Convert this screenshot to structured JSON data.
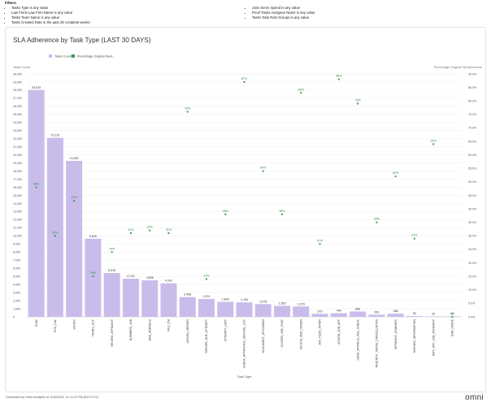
{
  "filters": {
    "title": "Filters",
    "left": [
      "Tasks Type is any value",
      "Law Firms Law Firm Name is any value",
      "Tasks Team Name is any value",
      "Tasks Created Date in the past 25 complete weeks"
    ],
    "right": [
      "Jobs Serve Speed is any value",
      "Proof Tasks Assignee Name is any value",
      "Tasks Task Role Groups is any value"
    ]
  },
  "footer": {
    "generated": "Generated by Omni Analytics at 2/26/2025, 11:13:22 PM (EST/UTC)",
    "logo": "omni"
  },
  "colors": {
    "bar": "#c9bceb",
    "point": "#3f9b52",
    "label_green": "#2f8a43"
  },
  "chart_data": {
    "type": "bar",
    "title": "SLA Adherence by Task Type (LAST 30 DAYS)",
    "xlabel": "Task Type",
    "ylabel": "Tasks Count",
    "ylabel_right": "Percentage Original Sla Adherence",
    "legend": [
      "Tasks Count",
      "Percentage Original Sla A..."
    ],
    "ylim": [
      0,
      30000
    ],
    "ylim_right": [
      0,
      90
    ],
    "yticks": [
      "0",
      "1,000",
      "2,000",
      "3,000",
      "4,000",
      "5,000",
      "6,000",
      "7,000",
      "8,000",
      "9,000",
      "10,000",
      "11,000",
      "12,000",
      "13,000",
      "14,000",
      "15,000",
      "16,000",
      "17,000",
      "18,000",
      "19,000",
      "20,000",
      "21,000",
      "22,000",
      "23,000",
      "24,000",
      "25,000",
      "26,000",
      "27,000",
      "28,000",
      "29,000",
      "30,000"
    ],
    "yticks_right": [
      "0.0%",
      "5.0%",
      "10.0%",
      "15.0%",
      "20.0%",
      "25.0%",
      "30.0%",
      "35.0%",
      "40.0%",
      "45.0%",
      "50.0%",
      "55.0%",
      "60.0%",
      "65.0%",
      "70.0%",
      "75.0%",
      "80.0%",
      "85.0%",
      "90.0%"
    ],
    "categories": [
      "CHAT",
      "POS_CAL",
      "SCHOC",
      "TRANS_OUT",
      "REVIEW_AFFIDAVIT",
      "NUMBERS_JOB",
      "BAD_ADDRESS",
      "FILE_CM",
      "ASSIGN_SERVER",
      "SERVER_DUE_ATTEMPT",
      "ATTEMPT_LIMIT",
      "CHECK_APPROVED_SERVICE_LIST",
      "DOCUMENT_UPLOADED",
      "CLOSED_JOB_CHAT",
      "NOTICE_AND_ORDER",
      "JOB_FILED_AFTER",
      "ASSIGN_JOB_APP",
      "SEND_WITNESS_FEE_CHECK",
      "REQUEST_SERVE_CANCELLATION",
      "AFFIDAVIT_CHANGES",
      "MISSING_INFORMATION",
      "DIFF_APP_JOB_AFFIDAVIT",
      "BAD_SPACE"
    ],
    "values": [
      28015,
      22110,
      19262,
      9649,
      5415,
      4710,
      4508,
      4141,
      2438,
      2201,
      1843,
      1784,
      1578,
      1363,
      1279,
      375,
      449,
      658,
      263,
      385,
      90,
      20,
      10
    ],
    "value_labels": [
      "28,015",
      "22,110",
      "19,262",
      "9,649",
      "5,415",
      "4,710",
      "4,508",
      "4,141",
      "2,438",
      "2,201",
      "1,843",
      "1,784",
      "1,578",
      "1,363",
      "1,279",
      "375",
      "449",
      "658",
      "263",
      "385",
      "90",
      "20",
      "10"
    ],
    "percent": [
      48,
      30,
      43,
      15,
      24,
      31,
      32,
      31,
      76,
      14,
      38,
      87,
      54,
      38,
      83,
      27,
      88,
      79,
      35,
      52,
      29,
      64,
      0
    ],
    "percent_labels": [
      "48%",
      "30%",
      "43%",
      "15%",
      "24%",
      "31%",
      "32%",
      "31%",
      "76%",
      "14%",
      "38%",
      "87%",
      "54%",
      "38%",
      "83%",
      "27%",
      "88%",
      "79%",
      "35%",
      "52%",
      "29%",
      "64%",
      "0%"
    ]
  }
}
